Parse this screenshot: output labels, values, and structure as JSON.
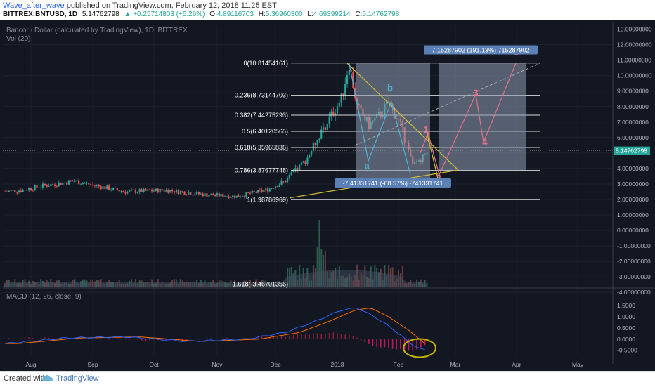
{
  "header": {
    "author": "Wave_after_wave",
    "published": "published on TradingView.com, February 12, 2018 11:25 EST",
    "symbol": "BITTREX:BNTUSD, 1D",
    "last": "5.14762798",
    "change": "▲ +0.25714803 (+5.26%)",
    "o_label": "O:",
    "o": "4.89116703",
    "h_label": "H:",
    "h": "5.36960300",
    "l_label": "L:",
    "l": "4.69399214",
    "c_label": "C:",
    "c": "5.14762798"
  },
  "chart_title": "Bancor / Dollar (calculated by TradingView), 1D, BITTREX",
  "vol_label": "Vol (20)",
  "macd_label": "MACD (12, 26, close, 9)",
  "price_badge": "5.14762798",
  "footer": {
    "created_with": "Created with",
    "brand": "TradingView"
  },
  "chart_data": [
    {
      "type": "candlestick",
      "title": "Bancor / Dollar (calculated by TradingView), 1D, BITTREX",
      "price_axis_labels": [
        "13.00000000",
        "12.00000000",
        "11.00000000",
        "10.00000000",
        "9.00000000",
        "8.00000000",
        "7.00000000",
        "6.00000000",
        "5.00000000",
        "4.00000000",
        "3.00000000",
        "2.00000000",
        "1.00000000",
        "0.00000000",
        "-1.00000000",
        "-2.00000000",
        "-3.00000000",
        "-4.00000000"
      ],
      "ylim": [
        -4.4,
        13.3
      ],
      "time_axis_labels": [
        "Aug",
        "Sep",
        "Oct",
        "Nov",
        "Dec",
        "2018",
        "Feb",
        "Mar",
        "Apr",
        "May"
      ],
      "current_price": 5.14762798,
      "fibonacci_levels": [
        {
          "label": "0(10.81454161)",
          "value": 10.81454161
        },
        {
          "label": "0.236(8.73144703)",
          "value": 8.73144703
        },
        {
          "label": "0.382(7.44275293)",
          "value": 7.44275293
        },
        {
          "label": "0.5(6.40120565)",
          "value": 6.40120565
        },
        {
          "label": "0.618(5.35965836)",
          "value": 5.35965836
        },
        {
          "label": "0.786(3.87677748)",
          "value": 3.87677748
        },
        {
          "label": "1(1.98786969)",
          "value": 1.98786969
        },
        {
          "label": "1.618(-3.46701356)",
          "value": -3.46701356
        }
      ],
      "measure_up": "7.15287902 (191.13%) 715287902",
      "measure_down": "-7.41331741 (-68.57%) -741331741",
      "wave_labels": [
        "a",
        "b",
        "1",
        "2",
        "3",
        "4",
        "5"
      ],
      "colors": {
        "up": "#26a69a",
        "down": "#ef5350",
        "fib": "#d8d8d8",
        "triangle": "#d4c234",
        "wave": "#e8728a",
        "badge": "#5b80b5"
      }
    },
    {
      "type": "bar",
      "title": "Vol (20)",
      "series": [
        {
          "name": "Vol (20)"
        }
      ]
    },
    {
      "type": "line",
      "title": "MACD (12, 26, close, 9)",
      "axis_labels": [
        "1.5000",
        "1.0000",
        "0.5000",
        "0.0000",
        "-0.5000"
      ],
      "ylim": [
        -0.7,
        1.6
      ],
      "colors": {
        "macd": "#2962ff",
        "signal": "#ff6d00",
        "hist": "#ef5350",
        "circle": "#c8b400"
      }
    }
  ]
}
